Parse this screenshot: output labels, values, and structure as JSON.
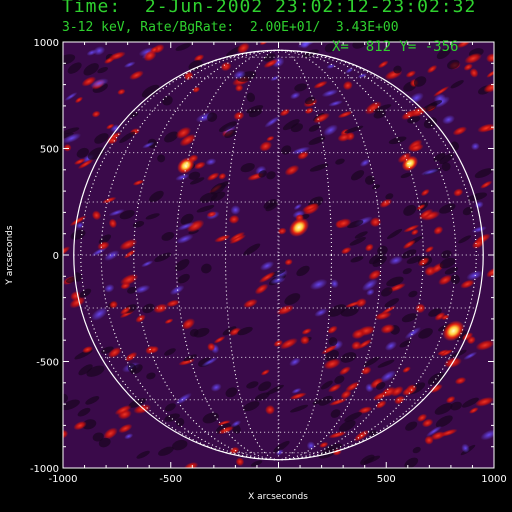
{
  "header": {
    "time_line": "Time:  2-Jun-2002 23:02:12-23:02:32",
    "info_line": "3-12 keV, Rate/BgRate:  2.00E+01/  3.43E+00"
  },
  "cursor_readout": "X=  812 Y= -356",
  "colors": {
    "text": "#2fd12f",
    "axes": "#ffffff",
    "background": "#000000"
  },
  "plot": {
    "xlabel": "X arcseconds",
    "ylabel": "Y arcseconds",
    "xlim": [
      -1000,
      1000
    ],
    "ylim": [
      -1000,
      1000
    ],
    "x_ticks": [
      "-1000",
      "-500",
      "0",
      "500",
      "1000"
    ],
    "y_ticks": [
      "1000",
      "500",
      "0",
      "-500",
      "-1000"
    ],
    "solar_limb_radius_arcsec": 950,
    "grid_spacing_deg": 15,
    "colormap": "purple-red-yellow",
    "bright_sources": [
      {
        "x": 812,
        "y": -356,
        "intensity": 1.0
      },
      {
        "x": 95,
        "y": 130,
        "intensity": 0.85
      },
      {
        "x": -430,
        "y": 420,
        "intensity": 0.6
      },
      {
        "x": 610,
        "y": 430,
        "intensity": 0.5
      }
    ]
  }
}
